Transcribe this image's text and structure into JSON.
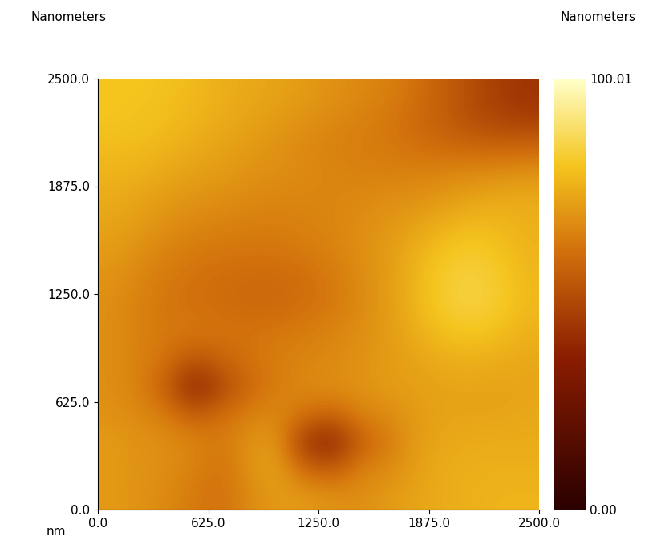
{
  "chart_data": {
    "type": "heatmap",
    "y_label": "Nanometers",
    "colorbar_label": "Nanometers",
    "x_label": "nm",
    "xlim": [
      0,
      2500
    ],
    "ylim": [
      0,
      2500
    ],
    "xticks": [
      {
        "value": 0,
        "label": "0.0"
      },
      {
        "value": 625,
        "label": "625.0"
      },
      {
        "value": 1250,
        "label": "1250.0"
      },
      {
        "value": 1875,
        "label": "1875.0"
      },
      {
        "value": 2500,
        "label": "2500.0"
      }
    ],
    "yticks": [
      {
        "value": 0,
        "label": "0.0"
      },
      {
        "value": 625,
        "label": "625.0"
      },
      {
        "value": 1250,
        "label": "1250.0"
      },
      {
        "value": 1875,
        "label": "1875.0"
      },
      {
        "value": 2500,
        "label": "2500.0"
      }
    ],
    "colorbar_range": [
      0,
      100.01
    ],
    "colorbar_ticks": [
      {
        "value": 0,
        "label": "0.00"
      },
      100.01
    ],
    "cells": [
      [
        80,
        80,
        79,
        77,
        75,
        73,
        72,
        70,
        68,
        66,
        64,
        60,
        55,
        50,
        45,
        42
      ],
      [
        80,
        79,
        78,
        76,
        74,
        72,
        70,
        68,
        66,
        64,
        62,
        58,
        55,
        50,
        47,
        45
      ],
      [
        78,
        78,
        76,
        74,
        72,
        70,
        68,
        66,
        64,
        63,
        62,
        60,
        58,
        57,
        56,
        57
      ],
      [
        76,
        75,
        73,
        71,
        70,
        68,
        67,
        66,
        65,
        64,
        64,
        64,
        65,
        66,
        67,
        68
      ],
      [
        74,
        72,
        70,
        68,
        67,
        66,
        65,
        65,
        65,
        66,
        67,
        68,
        70,
        72,
        74,
        74
      ],
      [
        72,
        70,
        67,
        65,
        64,
        63,
        63,
        64,
        65,
        67,
        69,
        72,
        75,
        78,
        77,
        75
      ],
      [
        70,
        67,
        64,
        62,
        61,
        61,
        61,
        62,
        64,
        67,
        70,
        75,
        80,
        82,
        80,
        76
      ],
      [
        68,
        65,
        62,
        60,
        59,
        58,
        58,
        59,
        62,
        66,
        70,
        76,
        82,
        84,
        82,
        77
      ],
      [
        67,
        64,
        61,
        60,
        59,
        58,
        58,
        60,
        62,
        66,
        70,
        76,
        82,
        84,
        82,
        77
      ],
      [
        67,
        64,
        62,
        62,
        61,
        61,
        62,
        63,
        65,
        67,
        70,
        74,
        78,
        80,
        78,
        75
      ],
      [
        67,
        64,
        60,
        50,
        56,
        60,
        63,
        65,
        66,
        68,
        70,
        72,
        74,
        75,
        74,
        73
      ],
      [
        67,
        64,
        55,
        36,
        48,
        58,
        63,
        66,
        67,
        68,
        70,
        71,
        72,
        72,
        72,
        72
      ],
      [
        68,
        66,
        63,
        55,
        60,
        64,
        66,
        60,
        56,
        64,
        66,
        70,
        72,
        72,
        72,
        73
      ],
      [
        70,
        68,
        67,
        65,
        62,
        68,
        70,
        42,
        36,
        55,
        62,
        70,
        73,
        74,
        74,
        74
      ],
      [
        70,
        68,
        67,
        64,
        60,
        68,
        72,
        58,
        54,
        64,
        66,
        71,
        74,
        75,
        75,
        75
      ],
      [
        70,
        68,
        66,
        62,
        60,
        66,
        70,
        70,
        68,
        67,
        70,
        72,
        74,
        75,
        76,
        76
      ]
    ]
  }
}
